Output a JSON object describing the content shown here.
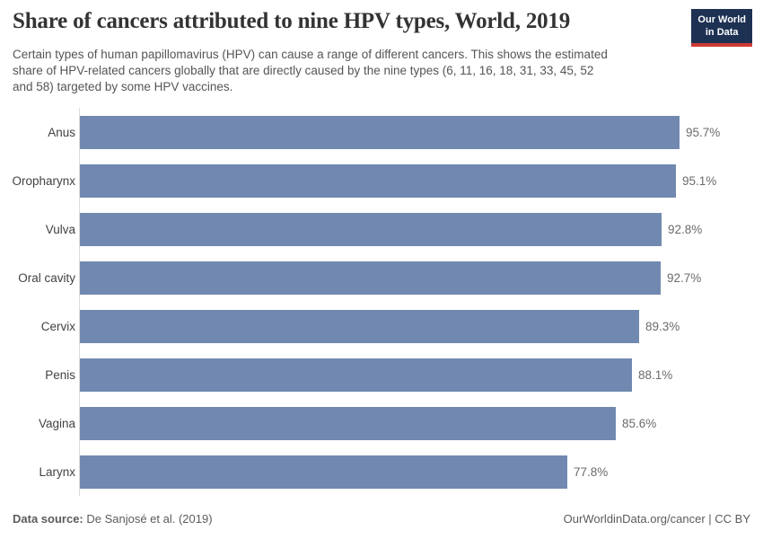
{
  "header": {
    "title": "Share of cancers attributed to nine HPV types, World, 2019",
    "subtitle_lines": [
      "Certain types of human papillomavirus (HPV) can cause a range of different cancers. This shows the estimated",
      "share of HPV-related cancers globally that are directly caused by the nine types (6, 11, 16, 18, 31, 33, 45, 52",
      "and 58) targeted by some HPV vaccines."
    ],
    "logo": {
      "line1": "Our World",
      "line2": "in Data",
      "bg_color": "#1d3153",
      "accent_color": "#cf3a34",
      "text_color": "#ffffff"
    }
  },
  "chart_data": {
    "type": "bar",
    "orientation": "horizontal",
    "title": "Share of cancers attributed to nine HPV types, World, 2019",
    "categories": [
      "Anus",
      "Oropharynx",
      "Vulva",
      "Oral cavity",
      "Cervix",
      "Penis",
      "Vagina",
      "Larynx"
    ],
    "values": [
      95.7,
      95.1,
      92.8,
      92.7,
      89.3,
      88.1,
      85.6,
      77.8
    ],
    "value_labels": [
      "95.7%",
      "95.1%",
      "92.8%",
      "92.7%",
      "89.3%",
      "88.1%",
      "85.6%",
      "77.8%"
    ],
    "unit": "%",
    "xlim": [
      0,
      100
    ],
    "grid": false,
    "legend": "none",
    "bar_color": "#7189b0",
    "axis_line_color": "#dcdcdc"
  },
  "footer": {
    "datasource_label": "Data source:",
    "datasource_value": " De Sanjosé et al. (2019)",
    "attribution": "OurWorldinData.org/cancer | CC BY"
  }
}
